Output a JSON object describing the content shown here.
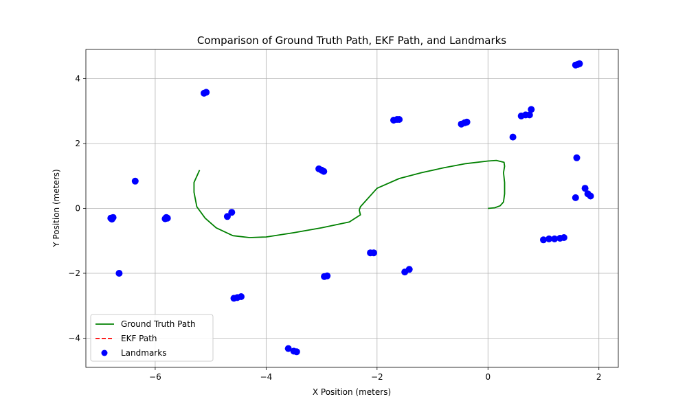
{
  "chart_data": {
    "type": "scatter",
    "title": "Comparison of Ground Truth Path, EKF Path, and Landmarks",
    "xlabel": "X Position (meters)",
    "ylabel": "Y Position (meters)",
    "xlim": [
      -7.25,
      2.35
    ],
    "ylim": [
      -4.9,
      4.9
    ],
    "xticks": [
      -6,
      -4,
      -2,
      0,
      2
    ],
    "yticks": [
      -4,
      -2,
      0,
      2,
      4
    ],
    "xtick_labels": [
      "−6",
      "−4",
      "−2",
      "0",
      "2"
    ],
    "ytick_labels": [
      "−4",
      "−2",
      "0",
      "2",
      "4"
    ],
    "grid": true,
    "legend_position": "lower-left",
    "series": [
      {
        "name": "Ground Truth Path",
        "kind": "line",
        "style": "solid",
        "color": "#008000",
        "points": [
          [
            0.0,
            0.0
          ],
          [
            0.12,
            0.02
          ],
          [
            0.22,
            0.08
          ],
          [
            0.28,
            0.2
          ],
          [
            0.3,
            0.45
          ],
          [
            0.3,
            0.8
          ],
          [
            0.28,
            1.1
          ],
          [
            0.3,
            1.3
          ],
          [
            0.29,
            1.42
          ],
          [
            0.15,
            1.48
          ],
          [
            0.0,
            1.46
          ],
          [
            -0.4,
            1.38
          ],
          [
            -0.8,
            1.25
          ],
          [
            -1.2,
            1.1
          ],
          [
            -1.6,
            0.92
          ],
          [
            -2.0,
            0.62
          ],
          [
            -2.3,
            0.05
          ],
          [
            -2.32,
            -0.05
          ],
          [
            -2.3,
            -0.2
          ],
          [
            -2.5,
            -0.42
          ],
          [
            -3.0,
            -0.6
          ],
          [
            -3.5,
            -0.75
          ],
          [
            -4.0,
            -0.88
          ],
          [
            -4.3,
            -0.9
          ],
          [
            -4.6,
            -0.84
          ],
          [
            -4.9,
            -0.6
          ],
          [
            -5.1,
            -0.3
          ],
          [
            -5.25,
            0.05
          ],
          [
            -5.3,
            0.5
          ],
          [
            -5.3,
            0.8
          ],
          [
            -5.2,
            1.18
          ]
        ]
      },
      {
        "name": "EKF Path",
        "kind": "line",
        "style": "dashed",
        "color": "#ff0000",
        "points": []
      },
      {
        "name": "Landmarks",
        "kind": "scatter",
        "color": "#0000ff",
        "points": [
          [
            -6.8,
            -0.3
          ],
          [
            -6.78,
            -0.33
          ],
          [
            -6.76,
            -0.28
          ],
          [
            -5.82,
            -0.32
          ],
          [
            -5.8,
            -0.28
          ],
          [
            -5.78,
            -0.3
          ],
          [
            -6.65,
            -2.0
          ],
          [
            -6.36,
            0.84
          ],
          [
            -5.12,
            3.55
          ],
          [
            -5.08,
            3.58
          ],
          [
            -4.7,
            -0.25
          ],
          [
            -4.62,
            -0.12
          ],
          [
            -4.58,
            -2.77
          ],
          [
            -4.52,
            -2.75
          ],
          [
            -4.45,
            -2.72
          ],
          [
            -3.6,
            -4.32
          ],
          [
            -3.5,
            -4.4
          ],
          [
            -3.45,
            -4.42
          ],
          [
            -3.05,
            1.22
          ],
          [
            -3.0,
            1.18
          ],
          [
            -2.96,
            1.14
          ],
          [
            -2.95,
            -2.1
          ],
          [
            -2.9,
            -2.08
          ],
          [
            -2.12,
            -1.37
          ],
          [
            -2.06,
            -1.37
          ],
          [
            -1.7,
            2.72
          ],
          [
            -1.64,
            2.74
          ],
          [
            -1.6,
            2.74
          ],
          [
            -1.5,
            -1.96
          ],
          [
            -1.42,
            -1.88
          ],
          [
            -0.48,
            2.6
          ],
          [
            -0.42,
            2.64
          ],
          [
            -0.38,
            2.66
          ],
          [
            0.45,
            2.2
          ],
          [
            0.6,
            2.85
          ],
          [
            0.68,
            2.88
          ],
          [
            0.75,
            2.88
          ],
          [
            0.78,
            3.05
          ],
          [
            1.0,
            -0.97
          ],
          [
            1.1,
            -0.94
          ],
          [
            1.2,
            -0.94
          ],
          [
            1.3,
            -0.92
          ],
          [
            1.37,
            -0.9
          ],
          [
            1.58,
            4.42
          ],
          [
            1.62,
            4.44
          ],
          [
            1.65,
            4.46
          ],
          [
            1.6,
            1.56
          ],
          [
            1.58,
            0.33
          ],
          [
            1.75,
            0.62
          ],
          [
            1.8,
            0.45
          ],
          [
            1.85,
            0.38
          ]
        ]
      }
    ]
  }
}
